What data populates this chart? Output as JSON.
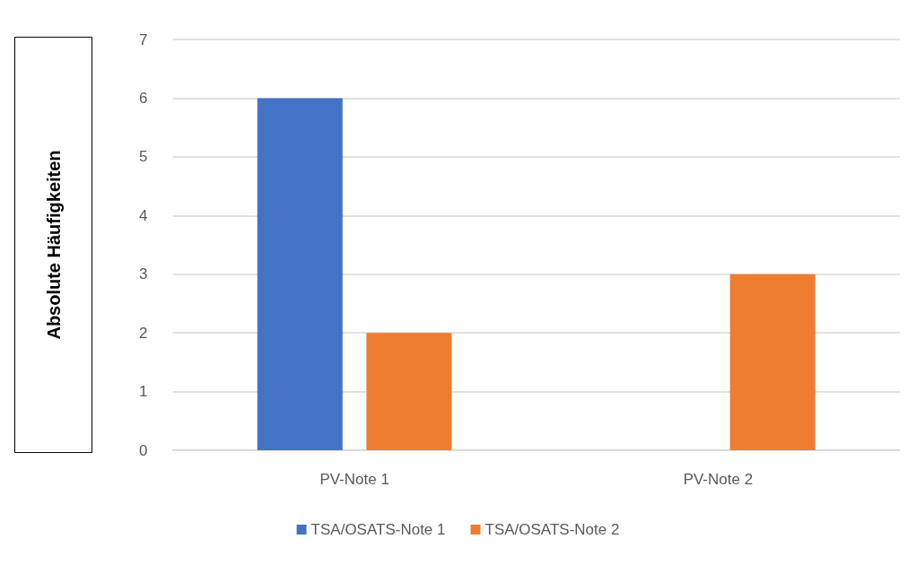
{
  "chart_data": {
    "type": "bar",
    "ylabel": "Absolute Häufigkeiten",
    "categories": [
      "PV-Note 1",
      "PV-Note 2"
    ],
    "series": [
      {
        "name": "TSA/OSATS-Note 1",
        "color": "#4472c4",
        "values": [
          6,
          0
        ]
      },
      {
        "name": "TSA/OSATS-Note 2",
        "color": "#ed7d31",
        "values": [
          2,
          3
        ]
      }
    ],
    "ylim": [
      0,
      7
    ],
    "yticks": [
      0,
      1,
      2,
      3,
      4,
      5,
      6,
      7
    ],
    "grid": "y",
    "legend": "bottom"
  }
}
